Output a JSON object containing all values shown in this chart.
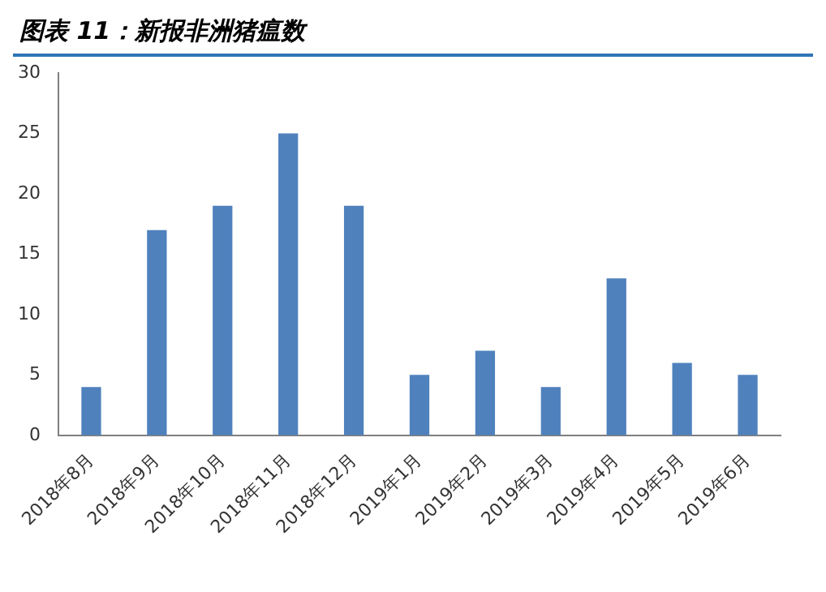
{
  "chart_data": {
    "type": "bar",
    "title": "图表 11：新报非洲猪瘟数",
    "categories": [
      "2018年8月",
      "2018年9月",
      "2018年10月",
      "2018年11月",
      "2018年12月",
      "2019年1月",
      "2019年2月",
      "2019年3月",
      "2019年4月",
      "2019年5月",
      "2019年6月"
    ],
    "values": [
      4,
      17,
      19,
      25,
      19,
      5,
      7,
      4,
      13,
      6,
      5
    ],
    "color": "#4f81bd",
    "ylim": [
      0,
      30
    ],
    "yticks": [
      0,
      5,
      10,
      15,
      20,
      25,
      30
    ],
    "grid": false,
    "legend": false
  }
}
